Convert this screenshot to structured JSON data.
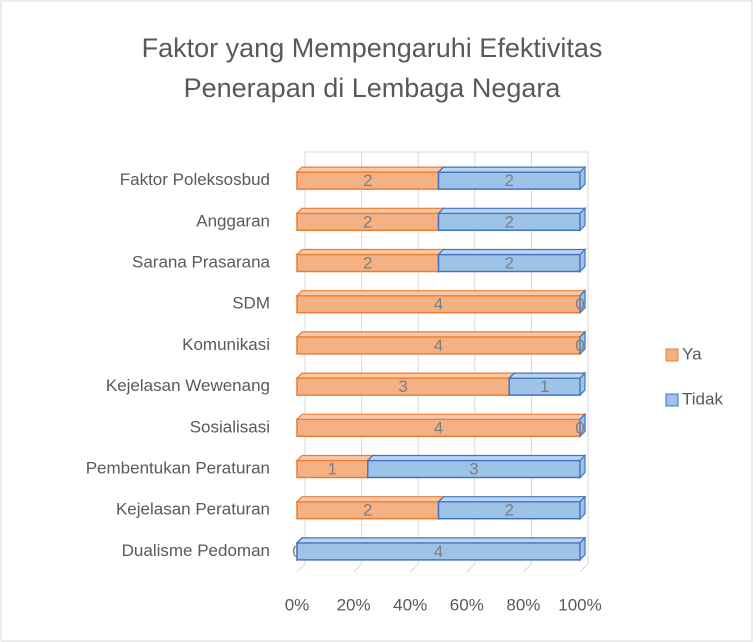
{
  "chart_data": {
    "type": "bar",
    "orientation": "horizontal",
    "stacked": "percent",
    "title": [
      "Faktor yang Mempengaruhi Efektivitas",
      "Penerapan di Lembaga Negara"
    ],
    "categories": [
      "Faktor Poleksosbud",
      "Anggaran",
      "Sarana Prasarana",
      "SDM",
      "Komunikasi",
      "Kejelasan Wewenang",
      "Sosialisasi",
      "Pembentukan Peraturan",
      "Kejelasan Peraturan",
      "Dualisme Pedoman"
    ],
    "series": [
      {
        "name": "Ya",
        "color": "#f4b183",
        "edge": "#ed7d31",
        "values": [
          2,
          2,
          2,
          4,
          4,
          3,
          4,
          1,
          2,
          0
        ]
      },
      {
        "name": "Tidak",
        "color": "#9dc3e6",
        "edge": "#4472c4",
        "values": [
          2,
          2,
          2,
          0,
          0,
          1,
          0,
          3,
          2,
          4
        ]
      }
    ],
    "xlim": [
      0,
      100
    ],
    "xticks": [
      {
        "value": 0,
        "label": "0%"
      },
      {
        "value": 20,
        "label": "20%"
      },
      {
        "value": 40,
        "label": "40%"
      },
      {
        "value": 60,
        "label": "60%"
      },
      {
        "value": 80,
        "label": "80%"
      },
      {
        "value": 100,
        "label": "100%"
      }
    ],
    "grid": true,
    "legend": "right"
  }
}
